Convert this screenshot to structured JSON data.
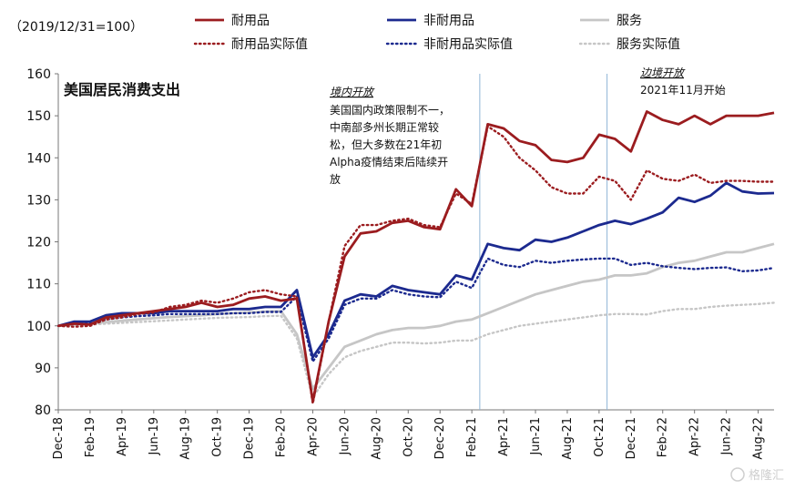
{
  "chart_data": {
    "type": "line",
    "title": "美国居民消费支出",
    "base_note": "（2019/12/31=100）",
    "ylim": [
      80,
      160
    ],
    "yticks": [
      80,
      90,
      100,
      110,
      120,
      130,
      140,
      150,
      160
    ],
    "x": [
      "Dec-18",
      "Jan-19",
      "Feb-19",
      "Mar-19",
      "Apr-19",
      "May-19",
      "Jun-19",
      "Jul-19",
      "Aug-19",
      "Sep-19",
      "Oct-19",
      "Nov-19",
      "Dec-19",
      "Jan-20",
      "Feb-20",
      "Mar-20",
      "Apr-20",
      "May-20",
      "Jun-20",
      "Jul-20",
      "Aug-20",
      "Sep-20",
      "Oct-20",
      "Nov-20",
      "Dec-20",
      "Jan-21",
      "Feb-21",
      "Mar-21",
      "Apr-21",
      "May-21",
      "Jun-21",
      "Jul-21",
      "Aug-21",
      "Sep-21",
      "Oct-21",
      "Nov-21",
      "Dec-21",
      "Jan-22",
      "Feb-22",
      "Mar-22",
      "Apr-22",
      "May-22",
      "Jun-22",
      "Jul-22",
      "Aug-22",
      "Sep-22"
    ],
    "x_tick_labels": [
      "Dec-18",
      "Feb-19",
      "Apr-19",
      "Jun-19",
      "Aug-19",
      "Oct-19",
      "Dec-19",
      "Feb-20",
      "Apr-20",
      "Jun-20",
      "Aug-20",
      "Oct-20",
      "Dec-20",
      "Feb-21",
      "Apr-21",
      "Jun-21",
      "Aug-21",
      "Oct-21",
      "Dec-21",
      "Feb-22",
      "Apr-22",
      "Jun-22",
      "Aug-22"
    ],
    "grid": false,
    "legend_position": "top",
    "series": [
      {
        "name": "耐用品",
        "color": "#9b1c1f",
        "dash": "solid",
        "values": [
          100,
          100.5,
          100.3,
          102,
          102.5,
          103,
          103.5,
          104,
          104.5,
          105.5,
          104.5,
          105,
          106.5,
          107,
          106,
          106.5,
          82,
          101,
          116.5,
          122,
          122.5,
          124.5,
          125,
          123.5,
          123,
          132.5,
          128.5,
          148,
          147,
          144,
          143,
          139.5,
          139,
          140,
          145.5,
          144.5,
          141.5,
          151,
          149,
          148,
          150,
          148,
          150,
          150,
          150,
          150.7
        ]
      },
      {
        "name": "非耐用品",
        "color": "#1c2a8f",
        "dash": "solid",
        "values": [
          100,
          101,
          101,
          102.5,
          103,
          103,
          103,
          103.5,
          103.5,
          103.5,
          103.5,
          104,
          104,
          104.5,
          104.5,
          108.5,
          92.5,
          98,
          106,
          107.5,
          107,
          109.5,
          108.5,
          108,
          107.5,
          112,
          111,
          119.5,
          118.5,
          118,
          120.5,
          120,
          121,
          122.5,
          124,
          125,
          124.2,
          125.5,
          127,
          130.5,
          129.5,
          131,
          134,
          132,
          131.5,
          131.6
        ]
      },
      {
        "name": "服务",
        "color": "#c6c6c6",
        "dash": "solid",
        "values": [
          100,
          100.3,
          100.6,
          100.9,
          101.2,
          101.5,
          101.8,
          102.1,
          102.3,
          102.5,
          102.8,
          103,
          103.2,
          103.4,
          103.5,
          98,
          85,
          90,
          95,
          96.5,
          98,
          99,
          99.5,
          99.5,
          100,
          101,
          101.5,
          103,
          104.5,
          106,
          107.5,
          108.5,
          109.5,
          110.5,
          111,
          112,
          112,
          112.5,
          114,
          115,
          115.5,
          116.5,
          117.5,
          117.5,
          118.5,
          119.5
        ]
      },
      {
        "name": "耐用品实际值",
        "color": "#9b1c1f",
        "dash": "dotted",
        "values": [
          100,
          99.8,
          100,
          101.5,
          102,
          102.8,
          103.2,
          104.5,
          105,
          106,
          105.5,
          106.5,
          108,
          108.5,
          107.5,
          107,
          81.5,
          101,
          119,
          124,
          124,
          125,
          125.5,
          124,
          123.5,
          131.5,
          129,
          147.5,
          145,
          140,
          137,
          133,
          131.5,
          131.5,
          135.5,
          134.5,
          130,
          137,
          135,
          134.5,
          136,
          134,
          134.5,
          134.5,
          134.3,
          134.3
        ]
      },
      {
        "name": "非耐用品实际值",
        "color": "#1c2a8f",
        "dash": "dotted",
        "values": [
          100,
          100.5,
          100.5,
          101.5,
          102,
          102.3,
          102.5,
          102.8,
          102.8,
          102.8,
          102.8,
          103,
          103,
          103.3,
          103.3,
          107,
          91.5,
          97,
          105,
          106.5,
          106.5,
          108.5,
          107.5,
          107,
          106.8,
          110.5,
          109,
          116,
          114.5,
          114,
          115.5,
          115,
          115.5,
          115.8,
          116,
          116,
          114.5,
          115,
          114.2,
          113.8,
          113.5,
          113.8,
          113.9,
          113,
          113.2,
          113.8
        ]
      },
      {
        "name": "服务实际值",
        "color": "#c6c6c6",
        "dash": "dotted",
        "values": [
          100,
          100.1,
          100.3,
          100.5,
          100.7,
          100.9,
          101.1,
          101.3,
          101.5,
          101.7,
          101.9,
          102,
          102.1,
          102.3,
          102.4,
          97,
          83,
          88.5,
          92.5,
          94,
          95,
          96,
          96,
          95.8,
          96,
          96.5,
          96.5,
          98,
          99,
          100,
          100.5,
          101,
          101.5,
          102,
          102.5,
          102.8,
          102.8,
          102.7,
          103.5,
          104,
          104,
          104.5,
          104.8,
          105,
          105.2,
          105.5
        ]
      }
    ],
    "vlines": [
      {
        "at": "Mar-21",
        "color": "#8fb4d6"
      },
      {
        "at": "Nov-21",
        "color": "#8fb4d6"
      }
    ],
    "annotations": [
      {
        "id": "a1",
        "title": "境内开放",
        "lines": [
          "美国国内政策限制不一，",
          "中南部多州长期正常较",
          "松，但大多数在21年初",
          "Alpha疫情结束后陆续开",
          "放"
        ]
      },
      {
        "id": "a2",
        "title": "边境开放",
        "lines": [
          "2021年11月开始"
        ]
      }
    ],
    "watermark": "格隆汇"
  }
}
